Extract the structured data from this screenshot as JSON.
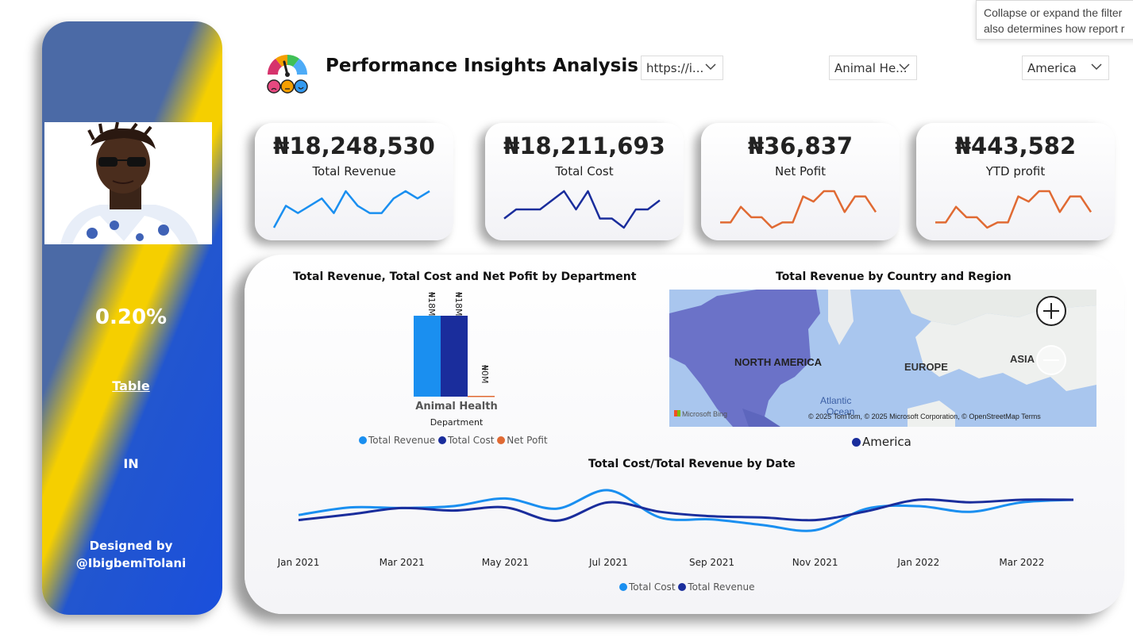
{
  "tooltip": {
    "line1": "Collapse or expand the filter",
    "line2": "also determines how report r"
  },
  "sidebar": {
    "percent": "0.20%",
    "table_link": "Table",
    "code": "IN",
    "designed_by": "Designed by",
    "handle": "@IbigbemiTolani"
  },
  "header": {
    "title": "Performance Insights Analysis",
    "slicers": [
      {
        "value": "https://i..."
      },
      {
        "value": "Animal He..."
      },
      {
        "value": "America"
      }
    ]
  },
  "kpis": [
    {
      "value": "₦18,248,530",
      "label": "Total Revenue",
      "color": "#1a8ff0",
      "spark": [
        3,
        6,
        5,
        6,
        7,
        5,
        8,
        6,
        5,
        5,
        7,
        8,
        7,
        8
      ]
    },
    {
      "value": "₦18,211,693",
      "label": "Total Cost",
      "color": "#1a2d9c",
      "spark": [
        5,
        6,
        6,
        6,
        7,
        8,
        6,
        8,
        5,
        5,
        4,
        6,
        6,
        7
      ]
    },
    {
      "value": "₦36,837",
      "label": "Net Pofit",
      "color": "#e06a33",
      "spark": [
        3,
        3,
        6,
        4,
        4,
        2,
        3,
        3,
        8,
        7,
        9,
        9,
        5,
        8,
        8,
        5
      ]
    },
    {
      "value": "₦443,582",
      "label": "YTD profit",
      "color": "#e06a33",
      "spark": [
        3,
        3,
        6,
        4,
        4,
        2,
        3,
        3,
        8,
        7,
        9,
        9,
        5,
        8,
        8,
        5
      ]
    }
  ],
  "bar_chart": {
    "title": "Total Revenue, Total Cost and Net Pofit by Department",
    "category": "Animal Health",
    "axis_label": "Department",
    "data_labels": [
      "₦18M",
      "₦18M",
      "₦0M"
    ],
    "legend": [
      {
        "name": "Total Revenue",
        "color": "#1a8ff0"
      },
      {
        "name": "Total Cost",
        "color": "#1a2d9c"
      },
      {
        "name": "Net Pofit",
        "color": "#e06a33"
      }
    ]
  },
  "map": {
    "title": "Total Revenue by Country and Region",
    "labels": {
      "north_america": "NORTH AMERICA",
      "europe": "EUROPE",
      "asia": "ASIA",
      "ocean1": "Atlantic",
      "ocean2": "Ocean"
    },
    "attribution": "© 2025 TomTom, © 2025 Microsoft Corporation, © OpenStreetMap  Terms",
    "bing": "Microsoft Bing",
    "legend": "America",
    "legend_color": "#1a2d9c"
  },
  "chart_data": [
    {
      "type": "bar",
      "title": "Total Revenue, Total Cost and Net Pofit by Department",
      "xlabel": "Department",
      "categories": [
        "Animal Health"
      ],
      "series": [
        {
          "name": "Total Revenue",
          "values": [
            18248530
          ]
        },
        {
          "name": "Total Cost",
          "values": [
            18211693
          ]
        },
        {
          "name": "Net Pofit",
          "values": [
            36837
          ]
        }
      ]
    },
    {
      "type": "line",
      "title": "Total Cost/Total Revenue by Date",
      "x_ticks": [
        "Jan 2021",
        "Mar 2021",
        "May 2021",
        "Jul 2021",
        "Sep 2021",
        "Nov 2021",
        "Jan 2022",
        "Mar 2022"
      ],
      "x": [
        "2021-01",
        "2021-02",
        "2021-03",
        "2021-04",
        "2021-05",
        "2021-06",
        "2021-07",
        "2021-08",
        "2021-09",
        "2021-10",
        "2021-11",
        "2021-12",
        "2022-01",
        "2022-02",
        "2022-03",
        "2022-04"
      ],
      "series": [
        {
          "name": "Total Cost",
          "color": "#1a8ff0",
          "values": [
            0.46,
            0.58,
            0.57,
            0.6,
            0.72,
            0.56,
            0.85,
            0.42,
            0.39,
            0.3,
            0.22,
            0.56,
            0.6,
            0.51,
            0.66,
            0.7
          ]
        },
        {
          "name": "Total Revenue",
          "color": "#1a2d9c",
          "values": [
            0.38,
            0.47,
            0.57,
            0.53,
            0.58,
            0.37,
            0.66,
            0.51,
            0.44,
            0.42,
            0.38,
            0.52,
            0.7,
            0.66,
            0.7,
            0.7
          ]
        }
      ]
    }
  ]
}
